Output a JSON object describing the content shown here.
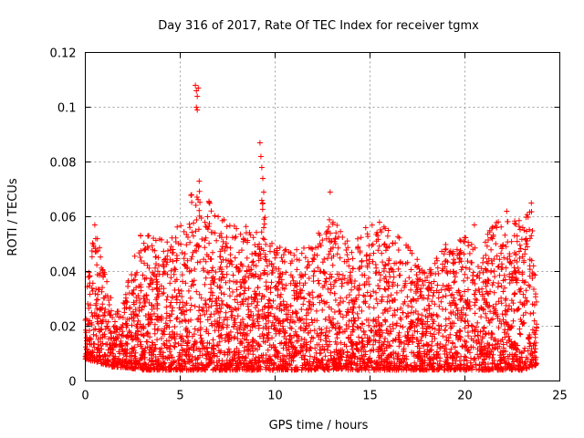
{
  "chart_data": {
    "type": "scatter",
    "title": "Day 316 of 2017, Rate Of TEC Index for receiver tgmx",
    "xlabel": "GPS time / hours",
    "ylabel": "ROTI / TECUs",
    "xlim": [
      0,
      25
    ],
    "ylim": [
      0,
      0.12
    ],
    "xticks": [
      0,
      5,
      10,
      15,
      20,
      25
    ],
    "xtick_labels": [
      "0",
      "5",
      "10",
      "15",
      "20",
      "25"
    ],
    "yticks": [
      0,
      0.02,
      0.04,
      0.06,
      0.08,
      0.1,
      0.12
    ],
    "ytick_labels": [
      "0",
      "0.02",
      "0.04",
      "0.06",
      "0.08",
      "0.1",
      "0.12"
    ],
    "grid": true,
    "marker": "+",
    "color": "#ff0000",
    "time_range_hours": [
      0.0,
      23.8
    ],
    "envelope": [
      {
        "x": 0.0,
        "low": 0.008,
        "high": 0.03
      },
      {
        "x": 0.5,
        "low": 0.007,
        "high": 0.057
      },
      {
        "x": 1.0,
        "low": 0.006,
        "high": 0.043
      },
      {
        "x": 1.5,
        "low": 0.005,
        "high": 0.025
      },
      {
        "x": 2.0,
        "low": 0.005,
        "high": 0.03
      },
      {
        "x": 3.0,
        "low": 0.004,
        "high": 0.056
      },
      {
        "x": 4.0,
        "low": 0.004,
        "high": 0.052
      },
      {
        "x": 5.0,
        "low": 0.004,
        "high": 0.06
      },
      {
        "x": 5.5,
        "low": 0.004,
        "high": 0.068
      },
      {
        "x": 6.0,
        "low": 0.004,
        "high": 0.072
      },
      {
        "x": 7.0,
        "low": 0.004,
        "high": 0.06
      },
      {
        "x": 8.0,
        "low": 0.004,
        "high": 0.058
      },
      {
        "x": 9.0,
        "low": 0.004,
        "high": 0.055
      },
      {
        "x": 9.3,
        "low": 0.004,
        "high": 0.066
      },
      {
        "x": 10.0,
        "low": 0.004,
        "high": 0.05
      },
      {
        "x": 11.0,
        "low": 0.004,
        "high": 0.048
      },
      {
        "x": 12.0,
        "low": 0.004,
        "high": 0.052
      },
      {
        "x": 13.0,
        "low": 0.004,
        "high": 0.06
      },
      {
        "x": 14.0,
        "low": 0.004,
        "high": 0.05
      },
      {
        "x": 15.0,
        "low": 0.004,
        "high": 0.058
      },
      {
        "x": 16.0,
        "low": 0.004,
        "high": 0.056
      },
      {
        "x": 17.0,
        "low": 0.004,
        "high": 0.05
      },
      {
        "x": 18.0,
        "low": 0.004,
        "high": 0.04
      },
      {
        "x": 19.0,
        "low": 0.004,
        "high": 0.05
      },
      {
        "x": 20.0,
        "low": 0.004,
        "high": 0.053
      },
      {
        "x": 21.0,
        "low": 0.004,
        "high": 0.052
      },
      {
        "x": 22.0,
        "low": 0.004,
        "high": 0.062
      },
      {
        "x": 23.0,
        "low": 0.004,
        "high": 0.058
      },
      {
        "x": 23.5,
        "low": 0.005,
        "high": 0.064
      },
      {
        "x": 23.8,
        "low": 0.006,
        "high": 0.04
      }
    ],
    "notable_points": [
      {
        "x": 5.8,
        "y": 0.108
      },
      {
        "x": 5.85,
        "y": 0.106
      },
      {
        "x": 5.9,
        "y": 0.104
      },
      {
        "x": 5.85,
        "y": 0.1
      },
      {
        "x": 5.9,
        "y": 0.099
      },
      {
        "x": 5.95,
        "y": 0.107
      },
      {
        "x": 9.2,
        "y": 0.087
      },
      {
        "x": 9.25,
        "y": 0.082
      },
      {
        "x": 9.3,
        "y": 0.078
      },
      {
        "x": 9.35,
        "y": 0.074
      },
      {
        "x": 9.4,
        "y": 0.069
      },
      {
        "x": 9.3,
        "y": 0.066
      },
      {
        "x": 9.35,
        "y": 0.065
      },
      {
        "x": 12.9,
        "y": 0.069
      },
      {
        "x": 6.0,
        "y": 0.073
      },
      {
        "x": 5.6,
        "y": 0.068
      },
      {
        "x": 23.5,
        "y": 0.065
      },
      {
        "x": 22.2,
        "y": 0.062
      },
      {
        "x": 0.5,
        "y": 0.057
      },
      {
        "x": 0.55,
        "y": 0.052
      },
      {
        "x": 9.4,
        "y": 0.056
      },
      {
        "x": 20.5,
        "y": 0.057
      },
      {
        "x": 15.5,
        "y": 0.058
      },
      {
        "x": 7.0,
        "y": 0.06
      }
    ]
  }
}
